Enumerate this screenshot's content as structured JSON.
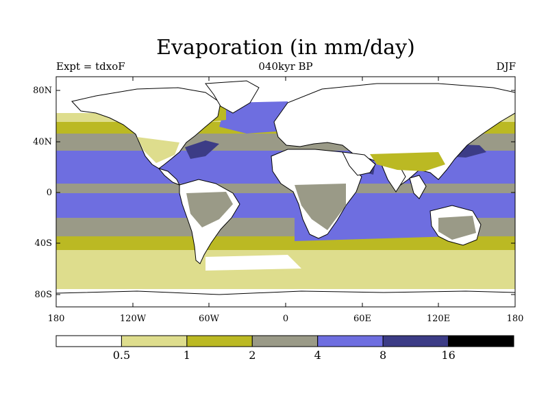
{
  "title": "Evaporation (in mm/day)",
  "subtitle_left": "Expt = tdxoF",
  "subtitle_center": "040kyr BP",
  "subtitle_right": "DJF",
  "lat_ticks": [
    "80N",
    "40N",
    "0",
    "40S",
    "80S"
  ],
  "lon_ticks": [
    "180",
    "120W",
    "60W",
    "0",
    "60E",
    "120E",
    "180"
  ],
  "colorbar": {
    "levels": [
      "0.5",
      "1",
      "2",
      "4",
      "8",
      "16"
    ],
    "colors": [
      "#ffffff",
      "#dedd8d",
      "#bbb923",
      "#9a9a87",
      "#6e6ee0",
      "#3c3c86",
      "#000000"
    ]
  },
  "colors": {
    "white": "#ffffff",
    "pale": "#dedd8d",
    "olive": "#bbb923",
    "gray": "#9a9a87",
    "blue": "#6e6ee0",
    "navy": "#3c3c86"
  }
}
